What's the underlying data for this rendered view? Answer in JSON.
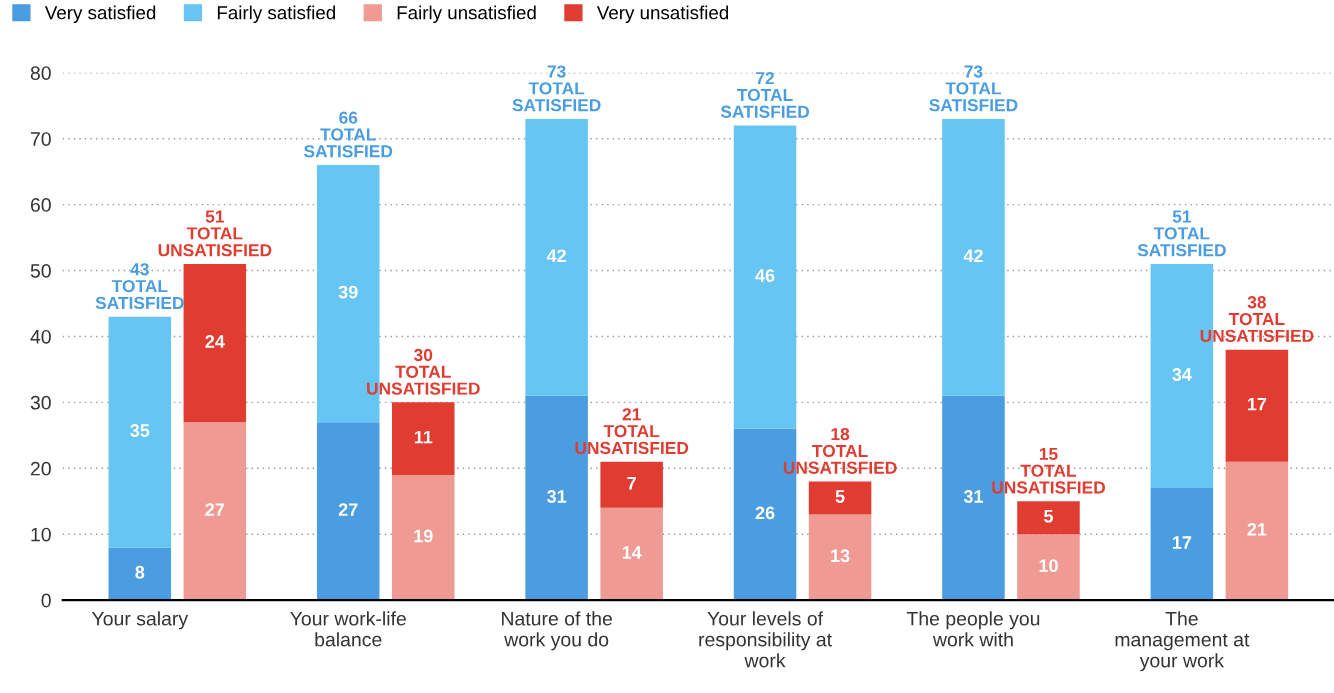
{
  "chart_data": {
    "type": "bar",
    "stacked": true,
    "categories": [
      "Your salary",
      null,
      "Your work-life\nbalance",
      null,
      "Nature of the\nwork you do",
      null,
      "Your levels of\nresponsibility at\nwork",
      null,
      "The people you\nwork with",
      null,
      "The\nmanagement at\nyour work",
      null
    ],
    "series": [
      {
        "name": "Very satisfied",
        "color": "#4a9de0",
        "values": [
          8,
          null,
          27,
          null,
          31,
          null,
          26,
          null,
          31,
          null,
          17,
          null
        ]
      },
      {
        "name": "Fairly satisfied",
        "color": "#66c5f3",
        "values": [
          35,
          null,
          39,
          null,
          42,
          null,
          46,
          null,
          42,
          null,
          34,
          null
        ]
      },
      {
        "name": "Fairly unsatisfied",
        "color": "#ef9a93",
        "values": [
          null,
          27,
          null,
          19,
          null,
          14,
          null,
          13,
          null,
          10,
          null,
          21
        ]
      },
      {
        "name": "Very unsatisfied",
        "color": "#e03c31",
        "values": [
          null,
          24,
          null,
          11,
          null,
          7,
          null,
          5,
          null,
          5,
          null,
          17
        ]
      }
    ],
    "totals": [
      "43\nTOTAL\nSATISFIED",
      "51\nTOTAL\nUNSATISFIED",
      "66\nTOTAL\nSATISFIED",
      "30\nTOTAL\nUNSATISFIED",
      "73\nTOTAL\nSATISFIED",
      "21\nTOTAL\nUNSATISFIED",
      "72\nTOTAL\nSATISFIED",
      "18\nTOTAL\nUNSATISFIED",
      "73\nTOTAL\nSATISFIED",
      "15\nTOTAL\nUNSATISFIED",
      "51\nTOTAL\nSATISFIED",
      "38\nTOTAL\nUNSATISFIED"
    ],
    "ylim": [
      0,
      80
    ],
    "yticks": [
      0,
      10,
      20,
      30,
      40,
      50,
      60,
      70,
      80
    ],
    "grid": "y",
    "legend": "top left",
    "data_labels": true
  }
}
